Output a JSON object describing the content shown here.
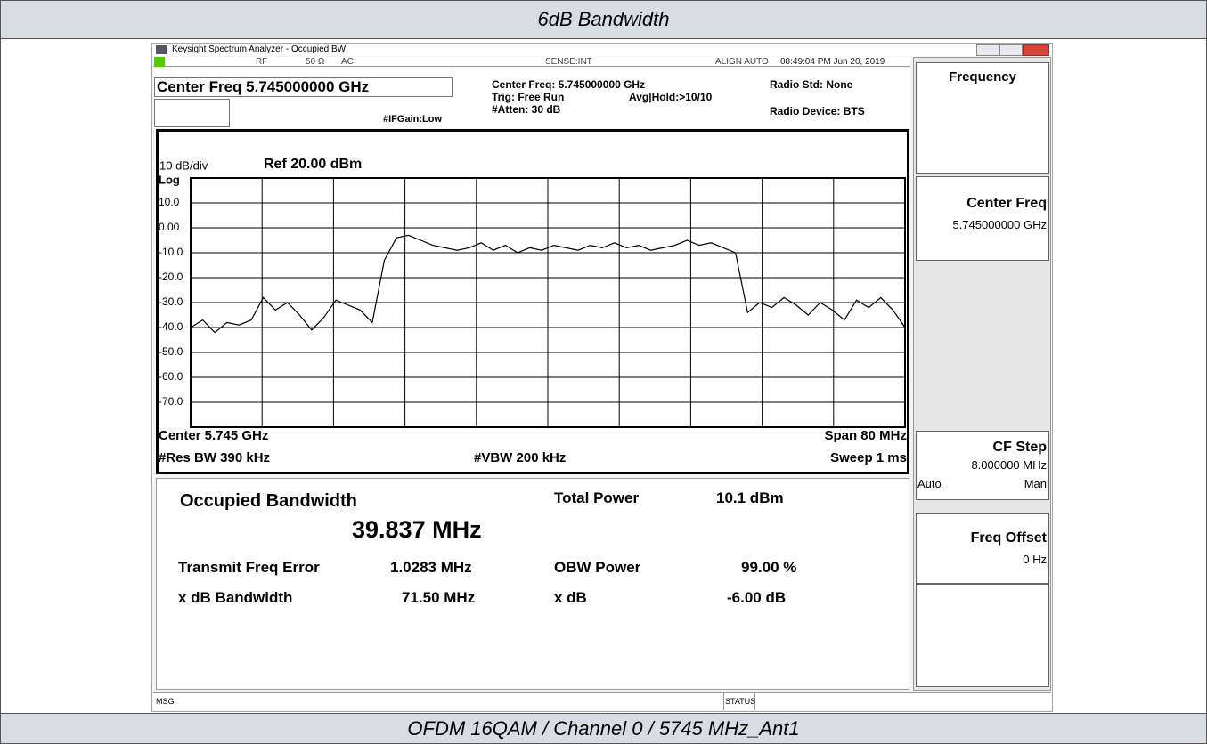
{
  "header": {
    "title": "6dB Bandwidth"
  },
  "footer": {
    "caption": "OFDM 16QAM / Channel 0 / 5745 MHz_Ant1"
  },
  "window": {
    "title": "Keysight Spectrum Analyzer - Occupied BW"
  },
  "status_bar": {
    "items": [
      "RF",
      "50 Ω",
      "AC",
      "SENSE:INT",
      "ALIGN AUTO",
      "08:49:04 PM Jun 20, 2019"
    ]
  },
  "settings": {
    "center_freq": "Center Freq 5.745000000 GHz",
    "if_gain": "#IFGain:Low",
    "center_freq_info": "Center Freq: 5.745000000 GHz",
    "trig": "Trig: Free Run",
    "avg_hold": "Avg|Hold:>10/10",
    "atten": "#Atten: 30 dB",
    "radio_std": "Radio Std: None",
    "radio_device": "Radio Device: BTS"
  },
  "chart_data": {
    "type": "line",
    "scale_label": "10 dB/div",
    "ref_label": "Ref 20.00 dBm",
    "log_label": "Log",
    "ylim": [
      -80,
      20
    ],
    "yticks": [
      {
        "value": 10,
        "label": "10.0"
      },
      {
        "value": 0,
        "label": "0.00"
      },
      {
        "value": -10,
        "label": "-10.0"
      },
      {
        "value": -20,
        "label": "-20.0"
      },
      {
        "value": -30,
        "label": "-30.0"
      },
      {
        "value": -40,
        "label": "-40.0"
      },
      {
        "value": -50,
        "label": "-50.0"
      },
      {
        "value": -60,
        "label": "-60.0"
      },
      {
        "value": -70,
        "label": "-70.0"
      }
    ],
    "values": [
      -40,
      -37,
      -42,
      -38,
      -39,
      -37,
      -28,
      -33,
      -30,
      -35,
      -41,
      -36,
      -29,
      -31,
      -33,
      -38,
      -13,
      -4,
      -3,
      -5,
      -7,
      -8,
      -9,
      -8,
      -6,
      -9,
      -7,
      -10,
      -8,
      -9,
      -7,
      -8,
      -9,
      -7,
      -8,
      -6,
      -8,
      -7,
      -9,
      -8,
      -7,
      -5,
      -7,
      -6,
      -8,
      -10,
      -34,
      -30,
      -32,
      -28,
      -31,
      -35,
      -30,
      -33,
      -37,
      -29,
      -32,
      -28,
      -33,
      -40
    ],
    "color": "#000000",
    "grid": true
  },
  "axis_footer": {
    "center": "Center  5.745 GHz",
    "res_bw": "#Res BW  390 kHz",
    "vbw": "#VBW  200 kHz",
    "span": "Span 80 MHz",
    "sweep": "Sweep  1 ms"
  },
  "results": {
    "title": "Occupied Bandwidth",
    "obw": "39.837 MHz",
    "total_power_label": "Total Power",
    "total_power": "10.1 dBm",
    "rows": [
      [
        "Transmit Freq Error",
        "1.0283 MHz",
        "OBW Power",
        "99.00 %"
      ],
      [
        "x dB Bandwidth",
        "71.50 MHz",
        "x dB",
        "-6.00 dB"
      ]
    ]
  },
  "softkeys": {
    "menu": "Frequency",
    "center_freq": {
      "label": "Center Freq",
      "value": "5.745000000 GHz"
    },
    "cf_step": {
      "label": "CF Step",
      "value": "8.000000 MHz",
      "auto": "Auto",
      "man": "Man"
    },
    "freq_offset": {
      "label": "Freq Offset",
      "value": "0 Hz"
    }
  },
  "message_bar": {
    "msg": "MSG",
    "status": "STATUS"
  }
}
